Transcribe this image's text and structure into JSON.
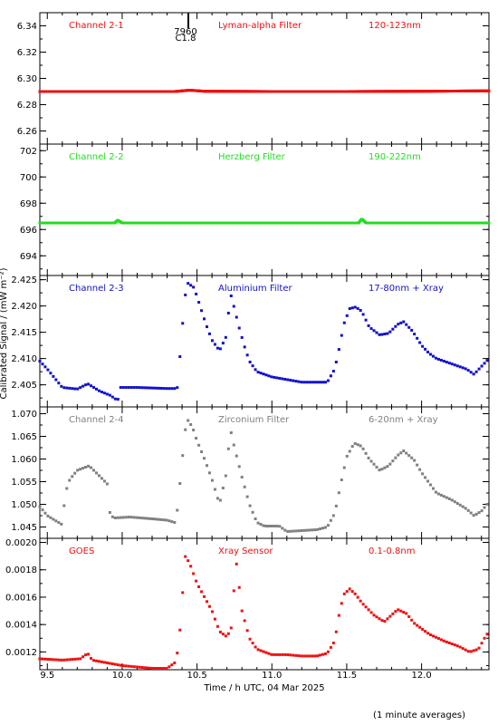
{
  "xlabel": "Time / h UTC, 04 Mar 2025",
  "ylabel": "Calibrated Signal / (mW m⁻²)",
  "footnote": "(1 minute averages)",
  "flare_marker": {
    "x": 10.42,
    "labels": [
      "7960",
      "C1.8"
    ]
  },
  "chart_data": [
    {
      "type": "scatter",
      "panel": "Channel 2-1",
      "labels": [
        "Channel 2-1",
        "Lyman-alpha Filter",
        "120-123nm"
      ],
      "color": "#ee1111",
      "xlim": [
        9.45,
        12.45
      ],
      "ylim": [
        6.25,
        6.35
      ],
      "x_ticks": [
        9.5,
        10.0,
        10.5,
        11.0,
        11.5,
        12.0
      ],
      "y_ticks": [
        "6.26",
        "6.28",
        "6.30",
        "6.32",
        "6.34"
      ],
      "series": [
        {
          "x": [
            9.45,
            10.35,
            10.4,
            10.45,
            10.55,
            11.0,
            11.5,
            12.0,
            12.45
          ],
          "values": [
            6.29,
            6.29,
            6.2905,
            6.291,
            6.2902,
            6.29,
            6.29,
            6.2902,
            6.2905
          ]
        }
      ]
    },
    {
      "type": "scatter",
      "panel": "Channel 2-2",
      "labels": [
        "Channel 2-2",
        "Herzberg Filter",
        "190-222nm"
      ],
      "color": "#22dd22",
      "xlim": [
        9.45,
        12.45
      ],
      "ylim": [
        692.5,
        702.5
      ],
      "x_ticks": [
        9.5,
        10.0,
        10.5,
        11.0,
        11.5,
        12.0
      ],
      "y_ticks": [
        "694",
        "696",
        "698",
        "700",
        "702"
      ],
      "series": [
        {
          "x": [
            9.45,
            9.95,
            9.97,
            10.0,
            11.0,
            11.58,
            11.6,
            11.63,
            12.45
          ],
          "values": [
            696.5,
            696.5,
            696.7,
            696.5,
            696.5,
            696.5,
            696.8,
            696.5,
            696.5
          ]
        }
      ]
    },
    {
      "type": "scatter",
      "panel": "Channel 2-3",
      "labels": [
        "Channel 2-3",
        "Aluminium Filter",
        "17-80nm + Xray"
      ],
      "color": "#1111cc",
      "xlim": [
        9.45,
        12.45
      ],
      "ylim": [
        2.4008,
        2.4258
      ],
      "x_ticks": [
        9.5,
        10.0,
        10.5,
        11.0,
        11.5,
        12.0
      ],
      "y_ticks": [
        "2.405",
        "2.410",
        "2.415",
        "2.420",
        "2.425"
      ],
      "series": [
        {
          "x": [
            9.45,
            9.5,
            9.6,
            9.7,
            9.77,
            9.85,
            9.92,
            9.97,
            9.99,
            10.02,
            10.1,
            10.2,
            10.3,
            10.35,
            10.37,
            10.4,
            10.43,
            10.48,
            10.52,
            10.56,
            10.6,
            10.65,
            10.7,
            10.72,
            10.75,
            10.78,
            10.82,
            10.85,
            10.9,
            11.0,
            11.1,
            11.2,
            11.3,
            11.37,
            11.42,
            11.45,
            11.48,
            11.52,
            11.56,
            11.6,
            11.65,
            11.72,
            11.78,
            11.84,
            11.88,
            11.94,
            12.0,
            12.05,
            12.1,
            12.2,
            12.3,
            12.35,
            12.4,
            12.45
          ],
          "values": [
            2.4095,
            2.408,
            2.4045,
            2.4042,
            2.4052,
            2.4038,
            2.403,
            2.402,
            2.4045,
            2.4045,
            2.4045,
            2.4044,
            2.4043,
            2.4043,
            2.4045,
            2.4155,
            2.4245,
            2.4235,
            2.42,
            2.4165,
            2.4135,
            2.4115,
            2.4145,
            2.4228,
            2.4195,
            2.416,
            2.412,
            2.4095,
            2.4075,
            2.4065,
            2.406,
            2.4055,
            2.4055,
            2.4055,
            2.408,
            2.412,
            2.4165,
            2.4195,
            2.4198,
            2.419,
            2.416,
            2.4145,
            2.4148,
            2.4165,
            2.417,
            2.4152,
            2.4125,
            2.411,
            2.41,
            2.409,
            2.408,
            2.407,
            2.4085,
            2.41
          ]
        }
      ]
    },
    {
      "type": "scatter",
      "panel": "Channel 2-4",
      "labels": [
        "Channel 2-4",
        "Zirconium Filter",
        "6-20nm + Xray"
      ],
      "color": "#808080",
      "xlim": [
        9.45,
        12.45
      ],
      "ylim": [
        1.0425,
        1.0715
      ],
      "x_ticks": [
        9.5,
        10.0,
        10.5,
        11.0,
        11.5,
        12.0
      ],
      "y_ticks": [
        "1.045",
        "1.050",
        "1.055",
        "1.060",
        "1.065",
        "1.070"
      ],
      "series": [
        {
          "x": [
            9.45,
            9.5,
            9.55,
            9.6,
            9.62,
            9.65,
            9.7,
            9.78,
            9.85,
            9.9,
            9.92,
            9.95,
            10.05,
            10.2,
            10.3,
            10.35,
            10.37,
            10.4,
            10.43,
            10.47,
            10.5,
            10.55,
            10.6,
            10.65,
            10.7,
            10.72,
            10.75,
            10.8,
            10.85,
            10.9,
            10.95,
            11.05,
            11.1,
            11.2,
            11.3,
            11.37,
            11.42,
            11.46,
            11.5,
            11.55,
            11.6,
            11.65,
            11.72,
            11.78,
            11.84,
            11.88,
            11.95,
            12.0,
            12.1,
            12.2,
            12.3,
            12.35,
            12.4,
            12.45
          ],
          "values": [
            1.0495,
            1.0475,
            1.0465,
            1.0455,
            1.0525,
            1.0555,
            1.0575,
            1.0585,
            1.0562,
            1.0545,
            1.0475,
            1.047,
            1.0472,
            1.0468,
            1.0465,
            1.046,
            1.049,
            1.0595,
            1.069,
            1.067,
            1.064,
            1.06,
            1.0555,
            1.05,
            1.0575,
            1.067,
            1.0625,
            1.056,
            1.05,
            1.046,
            1.0452,
            1.0452,
            1.044,
            1.0442,
            1.0444,
            1.045,
            1.048,
            1.0545,
            1.0605,
            1.0635,
            1.0628,
            1.06,
            1.0575,
            1.0585,
            1.0608,
            1.0618,
            1.0598,
            1.057,
            1.0525,
            1.051,
            1.049,
            1.0475,
            1.0485,
            1.0505
          ]
        }
      ]
    },
    {
      "type": "scatter",
      "panel": "GOES",
      "labels": [
        "GOES",
        "Xray Sensor",
        "0.1-0.8nm"
      ],
      "color": "#ee1111",
      "xlim": [
        9.45,
        12.45
      ],
      "ylim": [
        0.00107,
        0.00203
      ],
      "x_ticks": [
        9.5,
        10.0,
        10.5,
        11.0,
        11.5,
        12.0
      ],
      "y_ticks": [
        "0.0012",
        "0.0014",
        "0.0016",
        "0.0018",
        "0.0020"
      ],
      "series": [
        {
          "x": [
            9.45,
            9.6,
            9.72,
            9.77,
            9.8,
            9.9,
            10.0,
            10.1,
            10.2,
            10.3,
            10.35,
            10.37,
            10.39,
            10.42,
            10.45,
            10.5,
            10.55,
            10.6,
            10.65,
            10.7,
            10.73,
            10.76,
            10.8,
            10.85,
            10.9,
            11.0,
            11.1,
            11.2,
            11.3,
            11.37,
            11.42,
            11.45,
            11.48,
            11.52,
            11.56,
            11.6,
            11.68,
            11.75,
            11.84,
            11.9,
            11.95,
            12.05,
            12.15,
            12.25,
            12.32,
            12.38,
            12.42,
            12.45
          ],
          "values": [
            0.00115,
            0.00114,
            0.00115,
            0.00119,
            0.00114,
            0.00112,
            0.0011,
            0.00109,
            0.00108,
            0.00108,
            0.00112,
            0.0012,
            0.0014,
            0.0019,
            0.00185,
            0.0017,
            0.0016,
            0.0015,
            0.00135,
            0.00131,
            0.00138,
            0.00188,
            0.0015,
            0.0013,
            0.00122,
            0.00118,
            0.00118,
            0.00117,
            0.00117,
            0.00119,
            0.00128,
            0.00148,
            0.00162,
            0.00166,
            0.00162,
            0.00156,
            0.00147,
            0.00142,
            0.00151,
            0.00148,
            0.00141,
            0.00133,
            0.00128,
            0.00124,
            0.0012,
            0.00122,
            0.0013,
            0.00135
          ]
        }
      ]
    }
  ]
}
